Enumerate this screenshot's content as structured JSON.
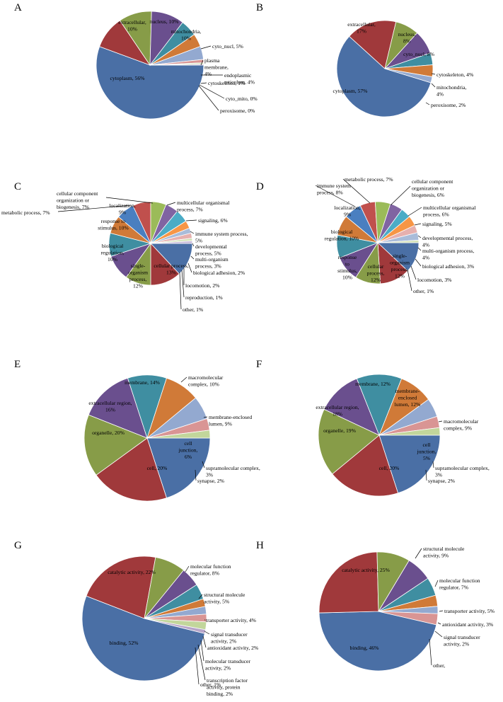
{
  "palette": [
    "#4a6fa5",
    "#a0393b",
    "#879c48",
    "#6a4f8e",
    "#3f8ea1",
    "#d07a38",
    "#93a9d0",
    "#d99594",
    "#c2d69b",
    "#b7a5c9",
    "#7fc5d6",
    "#f9a04a"
  ],
  "chart_data": [
    {
      "type": "pie",
      "panel": "A",
      "slices": [
        {
          "name": "cytoplasm",
          "label": "cytoplasm, 56%",
          "value": 56,
          "color": "#4a6fa5",
          "inside": true
        },
        {
          "name": "extracellular",
          "label": "extracellular, 10%",
          "value": 10,
          "color": "#a0393b",
          "inside": true
        },
        {
          "name": "nucleus",
          "label": "nucleus, 10%",
          "value": 10,
          "color": "#879c48",
          "inside": true
        },
        {
          "name": "mitochondria",
          "label": "mitochondria, 10%",
          "value": 10,
          "color": "#6a4f8e",
          "inside": true
        },
        {
          "name": "cyto_nucl",
          "label": "cyto_nucl, 5%",
          "value": 5,
          "color": "#3f8ea1",
          "inside": false
        },
        {
          "name": "plasma membrane",
          "label": "plasma membrane, 4%",
          "value": 4,
          "color": "#d07a38",
          "inside": false
        },
        {
          "name": "endoplasmic reticulum",
          "label": "endoplasmic reticulum, 4%",
          "value": 4,
          "color": "#93a9d0",
          "inside": false
        },
        {
          "name": "cytoskeleton",
          "label": "cytoskeleton, 1%",
          "value": 1,
          "color": "#d99594",
          "inside": false
        },
        {
          "name": "cyto_mito",
          "label": "cyto_mito, 0%",
          "value": 0.4,
          "color": "#c2d69b",
          "inside": false
        },
        {
          "name": "peroxisome",
          "label": "peroxisome, 0%",
          "value": 0.3,
          "color": "#b7a5c9",
          "inside": false
        }
      ]
    },
    {
      "type": "pie",
      "panel": "B",
      "slices": [
        {
          "name": "cytoplasm",
          "label": "cytoplasm, 57%",
          "value": 57,
          "color": "#4a6fa5",
          "inside": true
        },
        {
          "name": "extracellular",
          "label": "extracellular, 17%",
          "value": 17,
          "color": "#a0393b",
          "inside": true
        },
        {
          "name": "nucleus",
          "label": "nucleus, 8%",
          "value": 8,
          "color": "#879c48",
          "inside": true
        },
        {
          "name": "cyto_nucl",
          "label": "cyto_nucl, 8%",
          "value": 8,
          "color": "#6a4f8e",
          "inside": true
        },
        {
          "name": "cytoskeleton",
          "label": "cytoskeleton, 4%",
          "value": 4,
          "color": "#3f8ea1",
          "inside": false
        },
        {
          "name": "mitochondria",
          "label": "mitochondria, 4%",
          "value": 4,
          "color": "#d07a38",
          "inside": false
        },
        {
          "name": "peroxisome",
          "label": "peroxisome, 2%",
          "value": 2,
          "color": "#93a9d0",
          "inside": false
        }
      ]
    },
    {
      "type": "pie",
      "panel": "C",
      "slices": [
        {
          "name": "cellular process",
          "label": "cellular process, 13%",
          "value": 13,
          "color": "#4a6fa5",
          "inside": true
        },
        {
          "name": "single-organism process",
          "label": "single-organism process, 12%",
          "value": 12,
          "color": "#a0393b",
          "inside": true
        },
        {
          "name": "biological regulation",
          "label": "biological regulation, 10%",
          "value": 10,
          "color": "#879c48",
          "inside": true
        },
        {
          "name": "response to stimulus",
          "label": "response to stimulus, 10%",
          "value": 10,
          "color": "#6a4f8e",
          "inside": true
        },
        {
          "name": "localization",
          "label": "localization, 9%",
          "value": 9,
          "color": "#3f8ea1",
          "inside": true
        },
        {
          "name": "metabolic process",
          "label": "metabolic process, 7%",
          "value": 7,
          "color": "#d07a38",
          "inside": false
        },
        {
          "name": "cellular component organization or biogenesis",
          "label": "cellular component organization or biogenesis, 7%",
          "value": 7,
          "color": "#4a7fc0",
          "inside": false
        },
        {
          "name": "multicellular organismal process",
          "label": "multicellular organismal process, 7%",
          "value": 7,
          "color": "#c0504d",
          "inside": false
        },
        {
          "name": "signaling",
          "label": "signaling, 6%",
          "value": 6,
          "color": "#9bbb59",
          "inside": false
        },
        {
          "name": "immune system process",
          "label": "immune system process, 5%",
          "value": 5,
          "color": "#8064a2",
          "inside": false
        },
        {
          "name": "developmental process",
          "label": "developmental process, 5%",
          "value": 5,
          "color": "#4bacc6",
          "inside": false
        },
        {
          "name": "multi-organism process",
          "label": "multi-organism process, 3%",
          "value": 3,
          "color": "#f79646",
          "inside": false
        },
        {
          "name": "biological adhesion",
          "label": "biological adhesion, 2%",
          "value": 2,
          "color": "#a9bcd9",
          "inside": false
        },
        {
          "name": "locomotion",
          "label": "locomotion, 2%",
          "value": 2,
          "color": "#e6b0ae",
          "inside": false
        },
        {
          "name": "reproduction",
          "label": "reproduction, 1%",
          "value": 1,
          "color": "#d3e2b6",
          "inside": false
        },
        {
          "name": "other",
          "label": "other, 1%",
          "value": 1,
          "color": "#c8bbd9",
          "inside": false
        }
      ]
    },
    {
      "type": "pie",
      "panel": "D",
      "slices": [
        {
          "name": "single-organism process",
          "label": "single-organism process, 12%",
          "value": 12,
          "color": "#4a6fa5",
          "inside": true
        },
        {
          "name": "cellular process",
          "label": "cellular process, 12%",
          "value": 12,
          "color": "#a0393b",
          "inside": true
        },
        {
          "name": "response to stimulus",
          "label": "response to stimulus, 10%",
          "value": 10,
          "color": "#879c48",
          "inside": true
        },
        {
          "name": "biological regulation",
          "label": "biological regulation, 10%",
          "value": 10,
          "color": "#6a4f8e",
          "inside": true
        },
        {
          "name": "localization",
          "label": "localization, 9%",
          "value": 9,
          "color": "#3f8ea1",
          "inside": true
        },
        {
          "name": "immune system process",
          "label": "immune system process, 8%",
          "value": 8,
          "color": "#d07a38",
          "inside": false
        },
        {
          "name": "metabolic process",
          "label": "metabolic process, 7%",
          "value": 7,
          "color": "#4a7fc0",
          "inside": false
        },
        {
          "name": "cellular component organization or biogenesis",
          "label": "cellular component organization or biogenesis, 6%",
          "value": 6,
          "color": "#c0504d",
          "inside": false
        },
        {
          "name": "multicellular organismal process",
          "label": "multicellular organismal process, 6%",
          "value": 6,
          "color": "#9bbb59",
          "inside": false
        },
        {
          "name": "signaling",
          "label": "signaling, 5%",
          "value": 5,
          "color": "#8064a2",
          "inside": false
        },
        {
          "name": "developmental process",
          "label": "developmental process, 4%",
          "value": 4,
          "color": "#4bacc6",
          "inside": false
        },
        {
          "name": "multi-organism process",
          "label": "multi-organism process, 4%",
          "value": 4,
          "color": "#f79646",
          "inside": false
        },
        {
          "name": "biological adhesion",
          "label": "biological adhesion, 3%",
          "value": 3,
          "color": "#e6b0ae",
          "inside": false
        },
        {
          "name": "locomotion",
          "label": "locomotion, 3%",
          "value": 3,
          "color": "#a9bcd9",
          "inside": false
        },
        {
          "name": "other",
          "label": "other, 1%",
          "value": 1,
          "color": "#d3e2b6",
          "inside": false
        }
      ]
    },
    {
      "type": "pie",
      "panel": "E",
      "slices": [
        {
          "name": "cell",
          "label": "cell, 20%",
          "value": 20,
          "color": "#4a6fa5",
          "inside": true
        },
        {
          "name": "organelle",
          "label": "organelle, 20%",
          "value": 20,
          "color": "#a0393b",
          "inside": true
        },
        {
          "name": "extracellular region",
          "label": "extracellular region, 16%",
          "value": 16,
          "color": "#879c48",
          "inside": true
        },
        {
          "name": "membrane",
          "label": "membrane, 14%",
          "value": 14,
          "color": "#6a4f8e",
          "inside": true
        },
        {
          "name": "macromolecular complex",
          "label": "macromolecular complex, 10%",
          "value": 10,
          "color": "#3f8ea1",
          "inside": false
        },
        {
          "name": "membrane-enclosed lumen",
          "label": "membrane-enclosed lumen, 9%",
          "value": 9,
          "color": "#d07a38",
          "inside": false
        },
        {
          "name": "cell junction",
          "label": "cell junction, 6%",
          "value": 6,
          "color": "#93a9d0",
          "inside": true
        },
        {
          "name": "supramolecular complex",
          "label": "supramolecular complex, 3%",
          "value": 3,
          "color": "#d99594",
          "inside": false
        },
        {
          "name": "synapse",
          "label": "synapse, 2%",
          "value": 2,
          "color": "#c2d69b",
          "inside": false
        }
      ]
    },
    {
      "type": "pie",
      "panel": "F",
      "slices": [
        {
          "name": "cell",
          "label": "cell, 20%",
          "value": 20,
          "color": "#4a6fa5",
          "inside": true
        },
        {
          "name": "organelle",
          "label": "organelle, 19%",
          "value": 19,
          "color": "#a0393b",
          "inside": true
        },
        {
          "name": "extracellular region",
          "label": "extracellular region, 18%",
          "value": 18,
          "color": "#879c48",
          "inside": true
        },
        {
          "name": "membrane",
          "label": "membrane, 12%",
          "value": 12,
          "color": "#6a4f8e",
          "inside": true
        },
        {
          "name": "membrane-enclosed lumen",
          "label": "membrane-enclosed lumen, 12%",
          "value": 12,
          "color": "#3f8ea1",
          "inside": true
        },
        {
          "name": "macromolecular complex",
          "label": "macromolecular complex, 9%",
          "value": 9,
          "color": "#d07a38",
          "inside": false
        },
        {
          "name": "cell junction",
          "label": "cell junction, 5%",
          "value": 5,
          "color": "#93a9d0",
          "inside": true
        },
        {
          "name": "supramolecular complex",
          "label": "supramolecular complex, 3%",
          "value": 3,
          "color": "#d99594",
          "inside": false
        },
        {
          "name": "synapse",
          "label": "synapse, 2%",
          "value": 2,
          "color": "#c2d69b",
          "inside": false
        }
      ]
    },
    {
      "type": "pie",
      "panel": "G",
      "slices": [
        {
          "name": "binding",
          "label": "binding, 52%",
          "value": 52,
          "color": "#4a6fa5",
          "inside": true
        },
        {
          "name": "catalytic activity",
          "label": "catalytic activity, 22%",
          "value": 22,
          "color": "#a0393b",
          "inside": true
        },
        {
          "name": "molecular function regulator",
          "label": "molecular function regulator, 8%",
          "value": 8,
          "color": "#879c48",
          "inside": false
        },
        {
          "name": "structural molecule activity",
          "label": "structural molecule activity, 5%",
          "value": 5,
          "color": "#6a4f8e",
          "inside": false
        },
        {
          "name": "transporter activity",
          "label": "transporter activity, 4%",
          "value": 4,
          "color": "#3f8ea1",
          "inside": false
        },
        {
          "name": "signal transducer activity",
          "label": "signal transducer activity, 2%",
          "value": 2,
          "color": "#d07a38",
          "inside": false
        },
        {
          "name": "antioxidant activity",
          "label": "antioxidant activity, 2%",
          "value": 2,
          "color": "#93a9d0",
          "inside": false
        },
        {
          "name": "molecular transducer activity",
          "label": "molecular transducer activity, 2%",
          "value": 2,
          "color": "#d99594",
          "inside": false
        },
        {
          "name": "transcription factor activity, protein binding",
          "label": "transcription factor activity, protein binding, 2%",
          "value": 2,
          "color": "#c2d69b",
          "inside": false
        },
        {
          "name": "other",
          "label": "other, 1%",
          "value": 1,
          "color": "#b7a5c9",
          "inside": false
        }
      ]
    },
    {
      "type": "pie",
      "panel": "H",
      "slices": [
        {
          "name": "binding",
          "label": "binding, 46%",
          "value": 46,
          "color": "#4a6fa5",
          "inside": true
        },
        {
          "name": "catalytic activity",
          "label": "catalytic activity, 25%",
          "value": 25,
          "color": "#a0393b",
          "inside": true
        },
        {
          "name": "structural molecule activity",
          "label": "structural molecule activity, 9%",
          "value": 9,
          "color": "#879c48",
          "inside": false
        },
        {
          "name": "molecular function regulator",
          "label": "molecular function regulator, 7%",
          "value": 7,
          "color": "#6a4f8e",
          "inside": false
        },
        {
          "name": "transporter activity",
          "label": "transporter activity, 5%",
          "value": 5,
          "color": "#3f8ea1",
          "inside": false
        },
        {
          "name": "antioxidant activity",
          "label": "antioxidant activity, 3%",
          "value": 3,
          "color": "#d07a38",
          "inside": false
        },
        {
          "name": "signal transducer activity",
          "label": "signal transducer activity, 2%",
          "value": 2,
          "color": "#93a9d0",
          "inside": false
        },
        {
          "name": "other",
          "label": "other,",
          "value": 3,
          "color": "#d99594",
          "inside": false
        }
      ]
    }
  ]
}
